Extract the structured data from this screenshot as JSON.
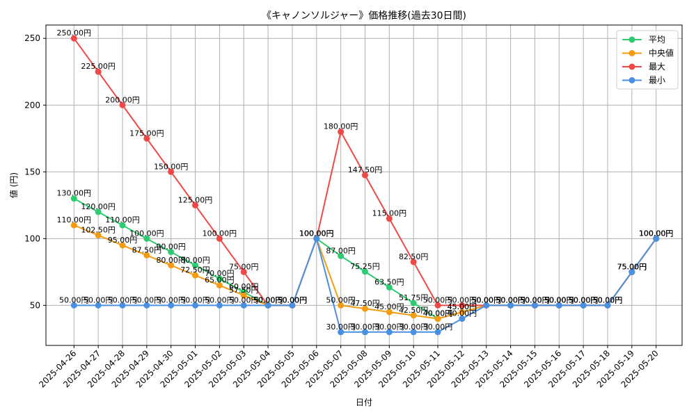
{
  "chart_data": {
    "type": "line",
    "title": "《キャノンソルジャー》価格推移(過去30日間)",
    "xlabel": "日付",
    "ylabel": "値 (円)",
    "ylim": [
      20,
      260
    ],
    "yticks": [
      50,
      100,
      150,
      200,
      250
    ],
    "grid": true,
    "legend_position": "top-right",
    "value_suffix": "円",
    "categories": [
      "2025-04-26",
      "2025-04-27",
      "2025-04-28",
      "2025-04-29",
      "2025-04-30",
      "2025-05-01",
      "2025-05-02",
      "2025-05-03",
      "2025-05-04",
      "2025-05-05",
      "2025-05-06",
      "2025-05-07",
      "2025-05-08",
      "2025-05-09",
      "2025-05-10",
      "2025-05-11",
      "2025-05-12",
      "2025-05-13",
      "2025-05-14",
      "2025-05-15",
      "2025-05-16",
      "2025-05-17",
      "2025-05-18",
      "2025-05-19",
      "2025-05-20"
    ],
    "series": [
      {
        "name": "平均",
        "color": "#2ecc71",
        "values": [
          130,
          120,
          110,
          100,
          90,
          80,
          70,
          60,
          50,
          50,
          100,
          87,
          75.25,
          63.5,
          51.75,
          40,
          45,
          50,
          50,
          50,
          50,
          50,
          50,
          75,
          100
        ]
      },
      {
        "name": "中央値",
        "color": "#f39c12",
        "values": [
          110,
          102.5,
          95,
          87.5,
          80,
          72.5,
          65,
          57.5,
          50,
          50,
          100,
          50,
          47.5,
          45,
          42.5,
          40,
          45,
          50,
          50,
          50,
          50,
          50,
          50,
          75,
          100
        ]
      },
      {
        "name": "最大",
        "color": "#f04747",
        "values": [
          250,
          225,
          200,
          175,
          150,
          125,
          100,
          75,
          50,
          50,
          100,
          180,
          147.5,
          115,
          82.5,
          50,
          50,
          50,
          50,
          50,
          50,
          50,
          50,
          75,
          100
        ]
      },
      {
        "name": "最小",
        "color": "#4a90e2",
        "values": [
          50,
          50,
          50,
          50,
          50,
          50,
          50,
          50,
          50,
          50,
          100,
          30,
          30,
          30,
          30,
          30,
          40,
          50,
          50,
          50,
          50,
          50,
          50,
          75,
          100
        ]
      }
    ]
  }
}
